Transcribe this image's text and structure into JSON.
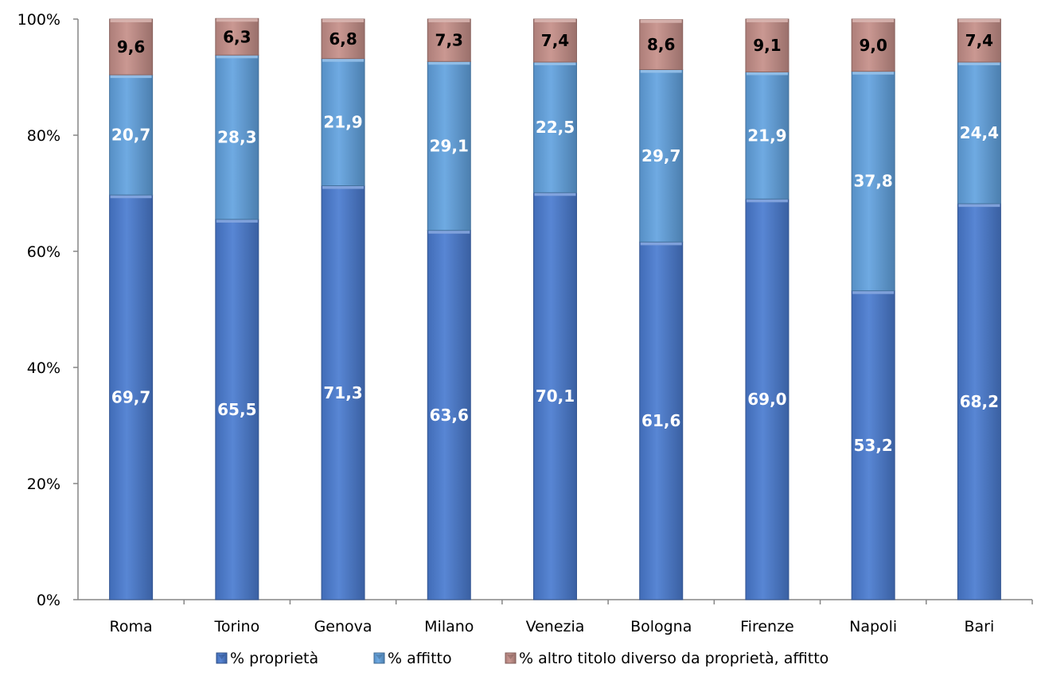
{
  "chart_data": {
    "type": "bar",
    "stacked": "percent",
    "categories": [
      "Roma",
      "Torino",
      "Genova",
      "Milano",
      "Venezia",
      "Bologna",
      "Firenze",
      "Napoli",
      "Bari"
    ],
    "series": [
      {
        "name": "% proprietà",
        "values": [
          "69,7",
          "65,5",
          "71,3",
          "63,6",
          "70,1",
          "61,6",
          "69,0",
          "53,2",
          "68,2"
        ],
        "color": "#4a7bd0",
        "label_color": "#ffffff"
      },
      {
        "name": "% affitto",
        "values": [
          "20,7",
          "28,3",
          "21,9",
          "29,1",
          "22,5",
          "29,7",
          "21,9",
          "37,8",
          "24,4"
        ],
        "color": "#62a3e0",
        "label_color": "#ffffff"
      },
      {
        "name": "% altro titolo diverso da proprietà, affitto",
        "values": [
          "9,6",
          "6,3",
          "6,8",
          "7,3",
          "7,4",
          "8,6",
          "9,1",
          "9,0",
          "7,4"
        ],
        "color": "#c58f89",
        "label_color": "#000000"
      }
    ],
    "y_ticks": [
      "0%",
      "20%",
      "40%",
      "60%",
      "80%",
      "100%"
    ],
    "ylim": [
      0,
      100
    ],
    "grid": false,
    "legend": "bottom"
  }
}
